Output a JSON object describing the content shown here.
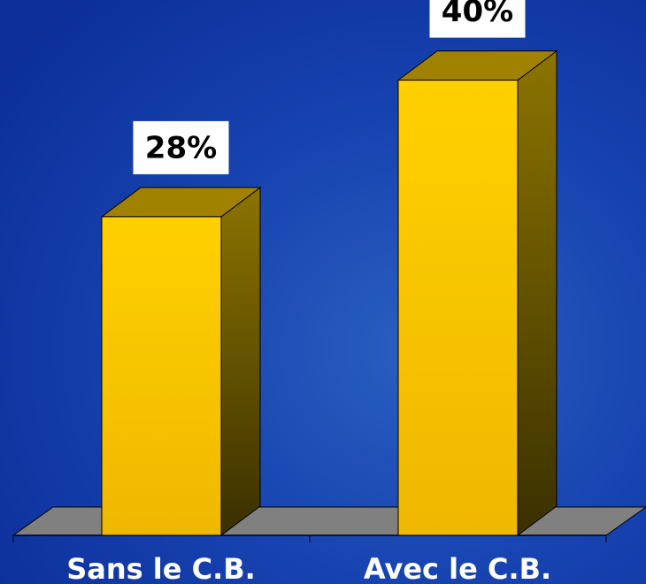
{
  "chart_data": {
    "type": "bar3d",
    "categories": [
      "Sans le C.B.",
      "Avec le C.B."
    ],
    "values": [
      28,
      40
    ],
    "value_labels": [
      "28%",
      "40%"
    ],
    "color": "#ffcc00"
  }
}
